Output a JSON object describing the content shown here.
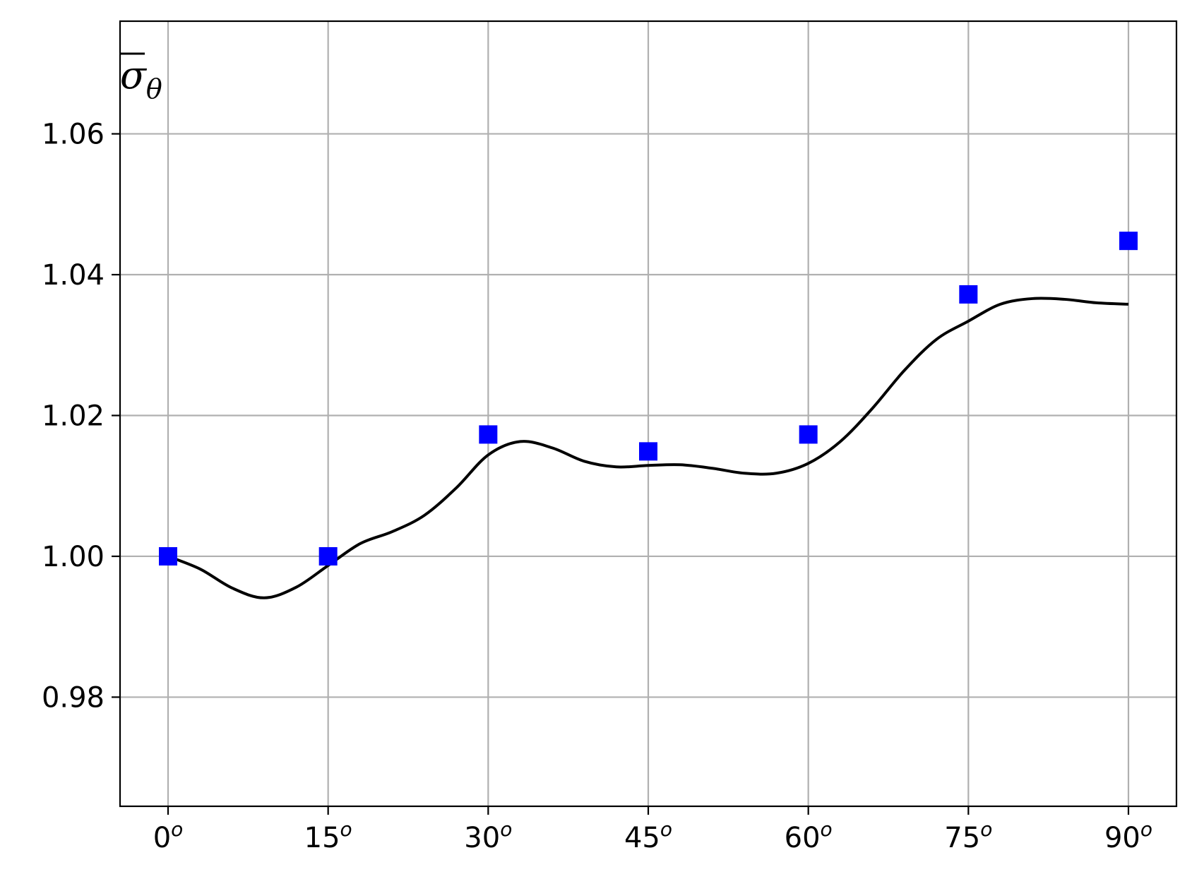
{
  "chart_data": {
    "type": "line",
    "title": "",
    "xlabel": "",
    "ylabel": "σ",
    "ylabel_subscript": "θ",
    "xlim": [
      -4.5,
      94.5
    ],
    "ylim": [
      0.9645,
      1.076
    ],
    "x_ticks": [
      {
        "value": 0,
        "label": "0",
        "sup": "o"
      },
      {
        "value": 15,
        "label": "15",
        "sup": "o"
      },
      {
        "value": 30,
        "label": "30",
        "sup": "o"
      },
      {
        "value": 45,
        "label": "45",
        "sup": "o"
      },
      {
        "value": 60,
        "label": "60",
        "sup": "o"
      },
      {
        "value": 75,
        "label": "75",
        "sup": "o"
      },
      {
        "value": 90,
        "label": "90",
        "sup": "o"
      }
    ],
    "y_ticks": [
      {
        "value": 0.98,
        "label": "0.98"
      },
      {
        "value": 1.0,
        "label": "1.00"
      },
      {
        "value": 1.02,
        "label": "1.02"
      },
      {
        "value": 1.04,
        "label": "1.04"
      },
      {
        "value": 1.06,
        "label": "1.06"
      }
    ],
    "grid": true,
    "series": [
      {
        "kind": "scatter",
        "marker": "square",
        "color": "#0000ff",
        "x": [
          0,
          15,
          30,
          45,
          60,
          75,
          90
        ],
        "y": [
          1.0,
          1.0,
          1.0173,
          1.0149,
          1.0173,
          1.0372,
          1.0448
        ]
      },
      {
        "kind": "line",
        "color": "#000000",
        "x": [
          0,
          3,
          6,
          9,
          12,
          15,
          18,
          21,
          24,
          27,
          30,
          33,
          36,
          39,
          42,
          45,
          48,
          51,
          54,
          57,
          60,
          63,
          66,
          69,
          72,
          75,
          78,
          81,
          84,
          87,
          90
        ],
        "y": [
          1.0,
          0.9982,
          0.9955,
          0.9941,
          0.9956,
          0.9987,
          1.0018,
          1.0035,
          1.0058,
          1.0097,
          1.0144,
          1.0163,
          1.0154,
          1.0135,
          1.0127,
          1.0129,
          1.013,
          1.0125,
          1.0118,
          1.0118,
          1.0132,
          1.0163,
          1.021,
          1.0264,
          1.0308,
          1.0334,
          1.0358,
          1.0366,
          1.0365,
          1.036,
          1.0358
        ]
      }
    ]
  }
}
